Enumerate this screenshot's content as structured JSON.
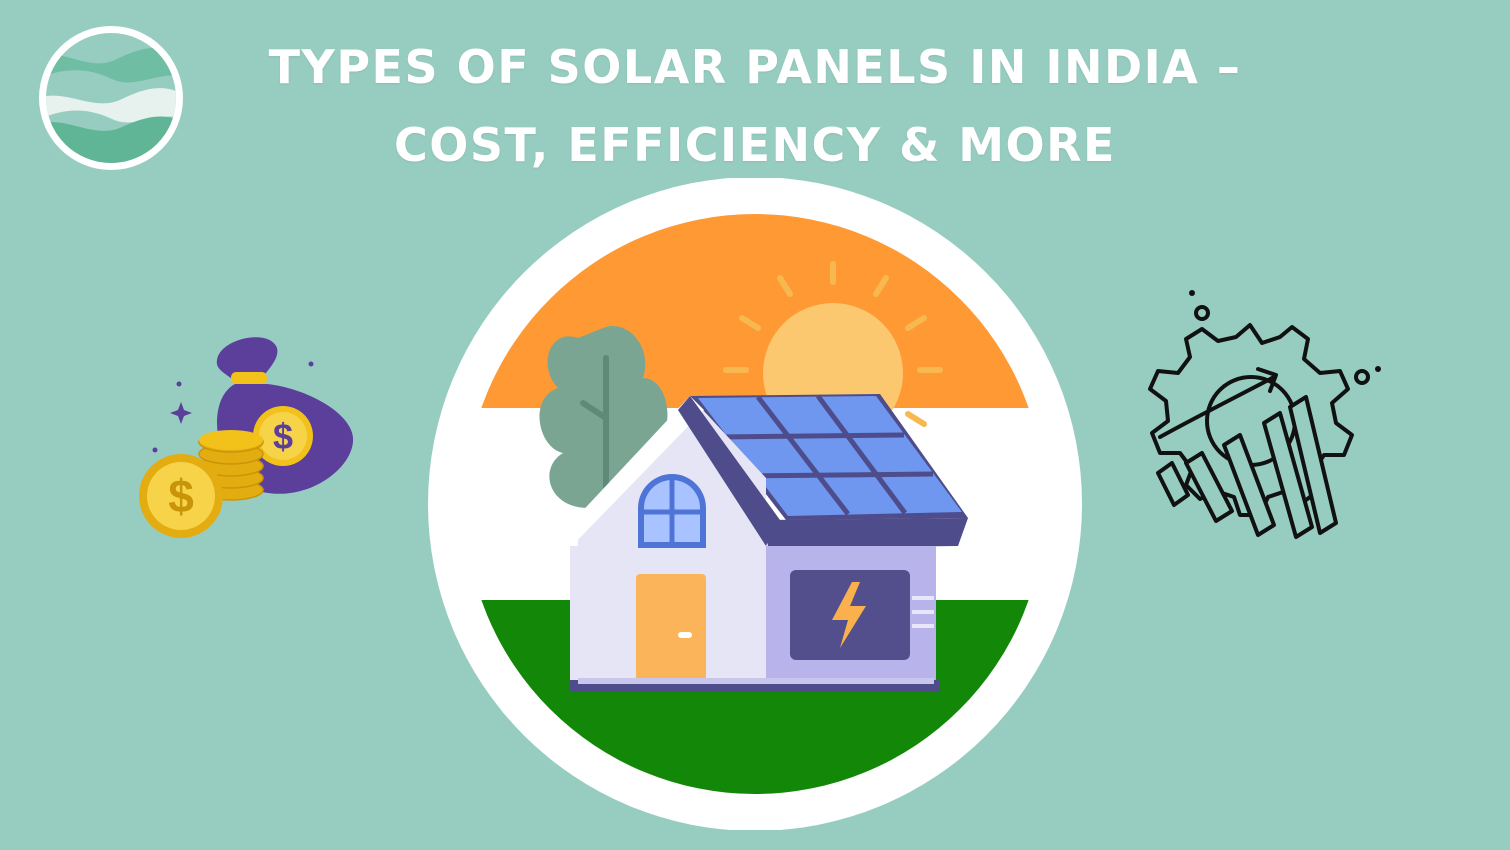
{
  "title": {
    "line1": "Types of Solar Panels in India –",
    "line2": "Cost, Efficiency & More"
  },
  "colors": {
    "background": "#97cdc0",
    "saffron": "#ff9933",
    "white": "#ffffff",
    "green": "#138808",
    "panel_blue": "#6f97f0",
    "sun": "#fbc76f",
    "coin": "#f2c21a",
    "bag": "#5b3f9a"
  },
  "icons": {
    "logo": "wave-logo-icon",
    "money": "money-bag-coins-icon",
    "growth": "gear-growth-chart-icon",
    "hero": "solar-house-india-flag-illustration"
  }
}
